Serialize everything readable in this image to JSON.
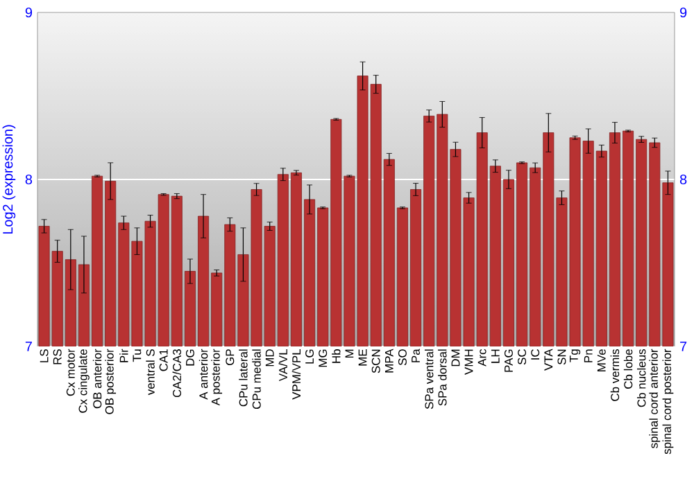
{
  "chart_data": {
    "type": "bar",
    "ylabel": "Log2 (expression)",
    "categories": [
      "LS",
      "RS",
      "Cx motor",
      "Cx cingulate",
      "OB anterior",
      "OB posterior",
      "Pir",
      "Tu",
      "ventral S",
      "CA1",
      "CA2/CA3",
      "DG",
      "A anterior",
      "A posterior",
      "GP",
      "CPu lateral",
      "CPu medial",
      "MD",
      "VA/VL",
      "VPM/VPL",
      "LG",
      "MG",
      "Hb",
      "M",
      "ME",
      "SCN",
      "MPA",
      "SO",
      "Pa",
      "SPa ventral",
      "SPa dorsal",
      "DM",
      "VMH",
      "Arc",
      "LH",
      "PAG",
      "SC",
      "IC",
      "VTA",
      "SN",
      "Tg",
      "Pn",
      "MVe",
      "Cb vermis",
      "Cb lobe",
      "Cb nucleus",
      "spinal cord anterior",
      "spinal cord posterior"
    ],
    "values": [
      7.72,
      7.57,
      7.52,
      7.49,
      8.02,
      7.99,
      7.74,
      7.63,
      7.75,
      7.91,
      7.9,
      7.45,
      7.78,
      7.44,
      7.73,
      7.55,
      7.94,
      7.72,
      8.03,
      8.04,
      7.88,
      7.83,
      8.36,
      8.02,
      8.62,
      8.57,
      8.12,
      7.83,
      7.94,
      8.38,
      8.39,
      8.18,
      7.89,
      8.28,
      8.08,
      8.0,
      8.1,
      8.07,
      8.28,
      7.89,
      8.25,
      8.23,
      8.17,
      8.28,
      8.29,
      8.24,
      8.22,
      7.98
    ],
    "errors": [
      0.04,
      0.066,
      0.18,
      0.17,
      0.005,
      0.11,
      0.04,
      0.08,
      0.036,
      0.005,
      0.015,
      0.073,
      0.13,
      0.018,
      0.04,
      0.16,
      0.036,
      0.025,
      0.037,
      0.014,
      0.087,
      0.005,
      0.005,
      0.005,
      0.084,
      0.054,
      0.036,
      0.005,
      0.037,
      0.036,
      0.077,
      0.043,
      0.032,
      0.091,
      0.037,
      0.055,
      0.005,
      0.029,
      0.115,
      0.041,
      0.01,
      0.073,
      0.036,
      0.062,
      0.005,
      0.018,
      0.028,
      0.07
    ],
    "color": "#b83232",
    "ylim": [
      7,
      9
    ],
    "yticks": [
      7,
      8,
      9
    ],
    "y2lim": [
      7,
      9
    ],
    "y2ticks": [
      7,
      8,
      9
    ],
    "grid": "y"
  }
}
